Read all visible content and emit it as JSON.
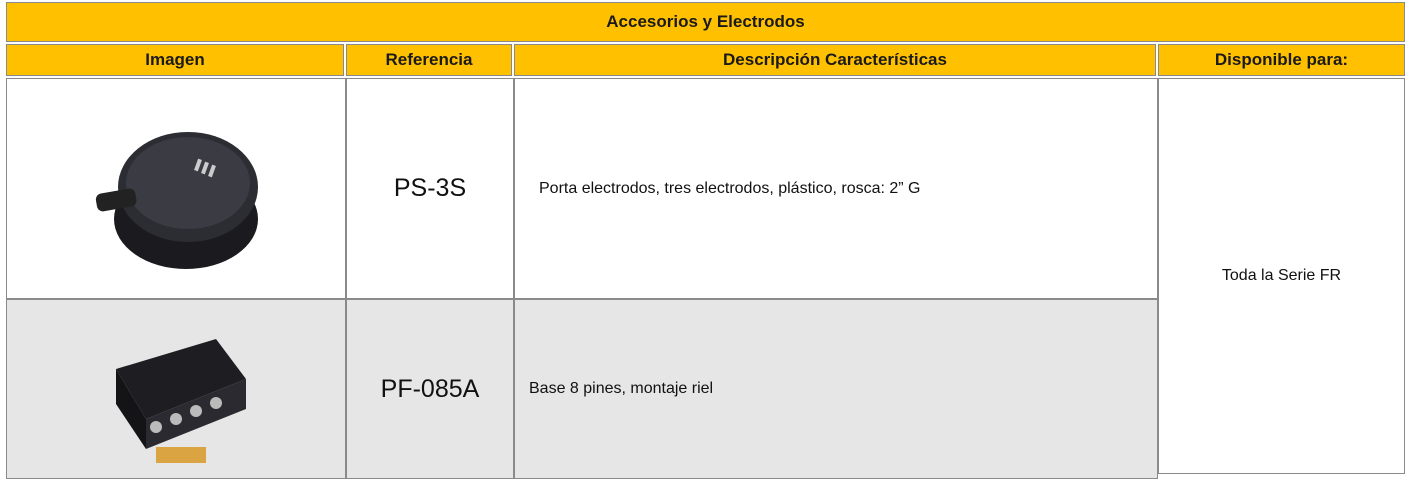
{
  "table": {
    "title": "Accesorios y Electrodos",
    "headers": [
      "Imagen",
      "Referencia",
      "Descripción Características",
      "Disponible para:"
    ],
    "rows": [
      {
        "reference": "PS-3S",
        "description": "Porta electrodos, tres electrodos, plástico, rosca: 2” G"
      },
      {
        "reference": "PF-085A",
        "description": "Base 8 pines, montaje riel"
      }
    ],
    "available": "Toda la Serie FR"
  }
}
